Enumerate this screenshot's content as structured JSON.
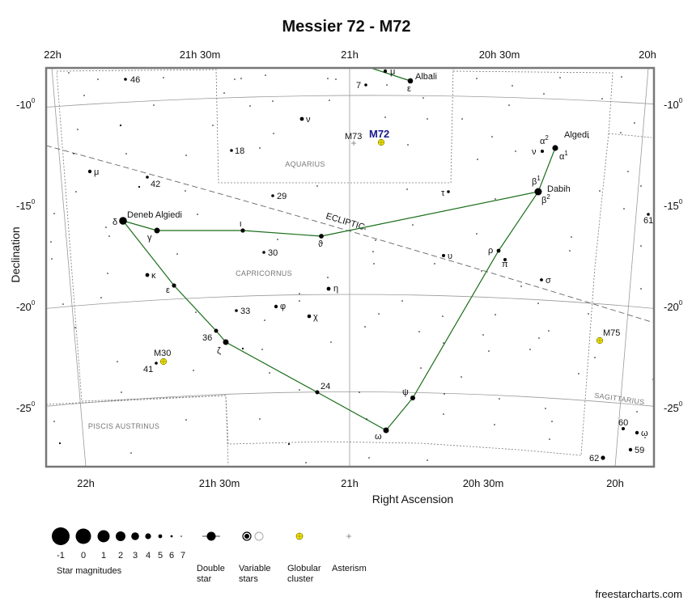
{
  "title": "Messier 72 - M72",
  "axis": {
    "ra_ticks_top": [
      "22h",
      "21h 30m",
      "21h",
      "20h 30m",
      "20h"
    ],
    "ra_ticks_bottom": [
      "22h",
      "21h 30m",
      "21h",
      "20h 30m",
      "20h"
    ],
    "dec_ticks_left": [
      {
        "main": "-10",
        "sup": "0"
      },
      {
        "main": "-15",
        "sup": "0"
      },
      {
        "main": "-20",
        "sup": "0"
      },
      {
        "main": "-25",
        "sup": "0"
      }
    ],
    "dec_ticks_right": [
      {
        "main": "-10",
        "sup": "0"
      },
      {
        "main": "-15",
        "sup": "0"
      },
      {
        "main": "-20",
        "sup": "0"
      },
      {
        "main": "-25",
        "sup": "0"
      }
    ],
    "xlabel": "Right Ascension",
    "ylabel": "Declination"
  },
  "ecliptic_label": "ECLIPTIC",
  "constellations": [
    "Aquarius",
    "Capricornus",
    "Piscis Austrinus",
    "Sagittarius"
  ],
  "objects": {
    "m72": {
      "label": "M72",
      "type": "Globular cluster"
    },
    "m73": {
      "label": "M73",
      "type": "Asterism"
    },
    "m30": {
      "label": "M30",
      "type": "Globular cluster"
    },
    "m75": {
      "label": "M75",
      "type": "Globular cluster"
    }
  },
  "star_names": [
    "Albali",
    "Algedi",
    "Dabih",
    "Deneb Algiedi"
  ],
  "legend": {
    "magnitudes": [
      "-1",
      "0",
      "1",
      "2",
      "3",
      "4",
      "5",
      "6",
      "7"
    ],
    "magnitudes_caption": "Star magnitudes",
    "double_star": [
      "Double",
      "star"
    ],
    "variable_stars": [
      "Variable",
      "stars"
    ],
    "globular_cluster": [
      "Globular",
      "cluster"
    ],
    "asterism": "Asterism"
  },
  "credit": "freestarcharts.com",
  "colors": {
    "stick_figure": "#1a6e1a",
    "m72_label": "#1a1a8c",
    "cluster_fill": "#ffee00",
    "frame": "#777777"
  }
}
